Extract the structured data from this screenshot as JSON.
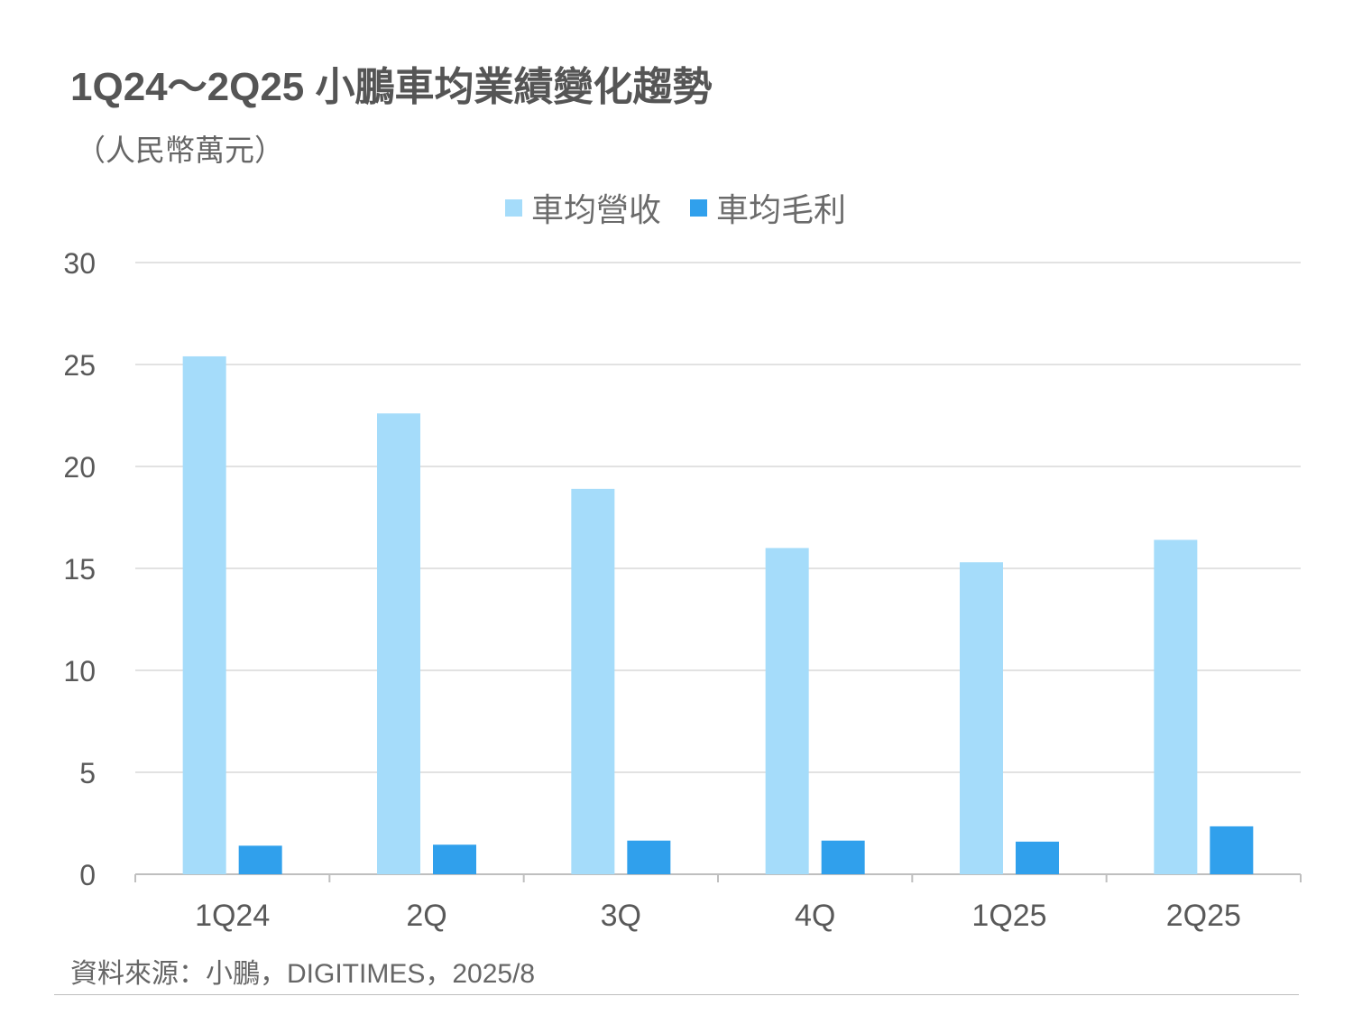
{
  "title": "1Q24～2Q25 小鵬車均業績變化趨勢",
  "subtitle": "（人民幣萬元）",
  "source": "資料來源：小鵬，DIGITIMES，2025/8",
  "colors": {
    "revenue": "#a5dcfa",
    "gross_profit": "#30a0ec",
    "grid": "#d9d9d9",
    "axis": "#bfbfbf",
    "text": "#555555"
  },
  "chart_data": {
    "type": "bar",
    "categories": [
      "1Q24",
      "2Q",
      "3Q",
      "4Q",
      "1Q25",
      "2Q25"
    ],
    "series": [
      {
        "name": "車均營收",
        "values": [
          25.4,
          22.6,
          18.9,
          16.0,
          15.3,
          16.4
        ]
      },
      {
        "name": "車均毛利",
        "values": [
          1.4,
          1.45,
          1.65,
          1.65,
          1.6,
          2.35
        ]
      }
    ],
    "ylim": [
      0,
      30
    ],
    "yticks": [
      0,
      5,
      10,
      15,
      20,
      25,
      30
    ],
    "grid": true,
    "legend_position": "top-center"
  }
}
